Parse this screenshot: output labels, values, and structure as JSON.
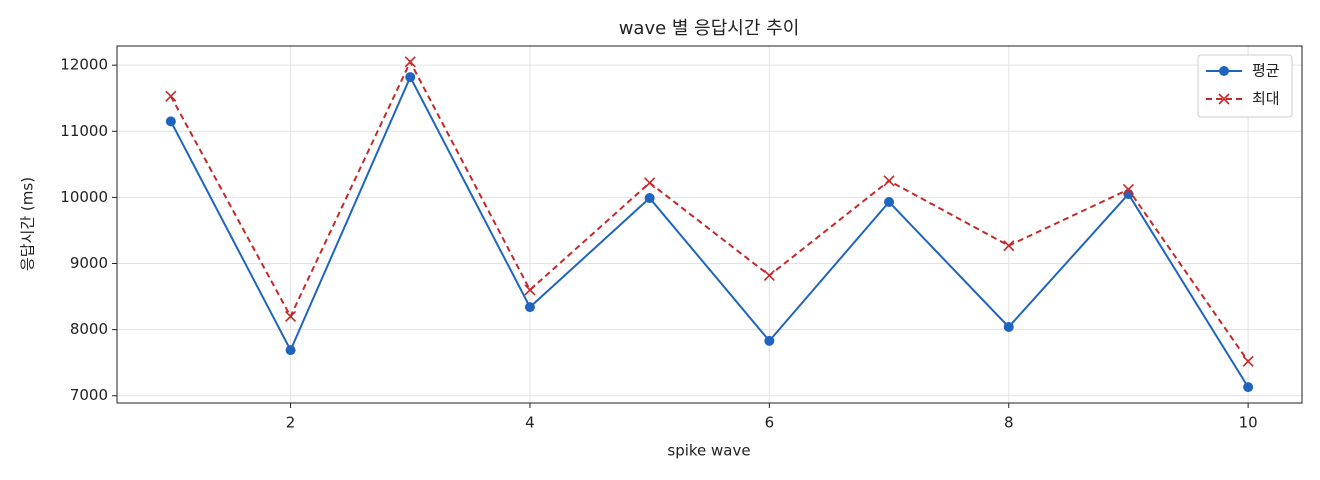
{
  "chart_data": {
    "type": "line",
    "title": "wave 별 응답시간 추이",
    "x_label": "spike wave",
    "y_label": "응답시간 (ms)",
    "x": [
      1,
      2,
      3,
      4,
      5,
      6,
      7,
      8,
      9,
      10
    ],
    "series": [
      {
        "name": "평균",
        "color": "#1f65c0",
        "linestyle": "solid",
        "marker": "circle",
        "values": [
          11150,
          7690,
          11820,
          8340,
          9990,
          7830,
          9930,
          8040,
          10050,
          7130
        ]
      },
      {
        "name": "최대",
        "color": "#c62828",
        "linestyle": "dashed",
        "marker": "x",
        "values": [
          11530,
          8200,
          12050,
          8600,
          10220,
          8820,
          10250,
          9270,
          10120,
          7520
        ]
      }
    ],
    "xlim": [
      0.55,
      10.45
    ],
    "xticks": [
      2,
      4,
      6,
      8,
      10
    ],
    "ylim": [
      6890,
      12290
    ],
    "yticks": [
      7000,
      8000,
      9000,
      10000,
      11000,
      12000
    ],
    "grid": true,
    "legend": "upper right"
  }
}
